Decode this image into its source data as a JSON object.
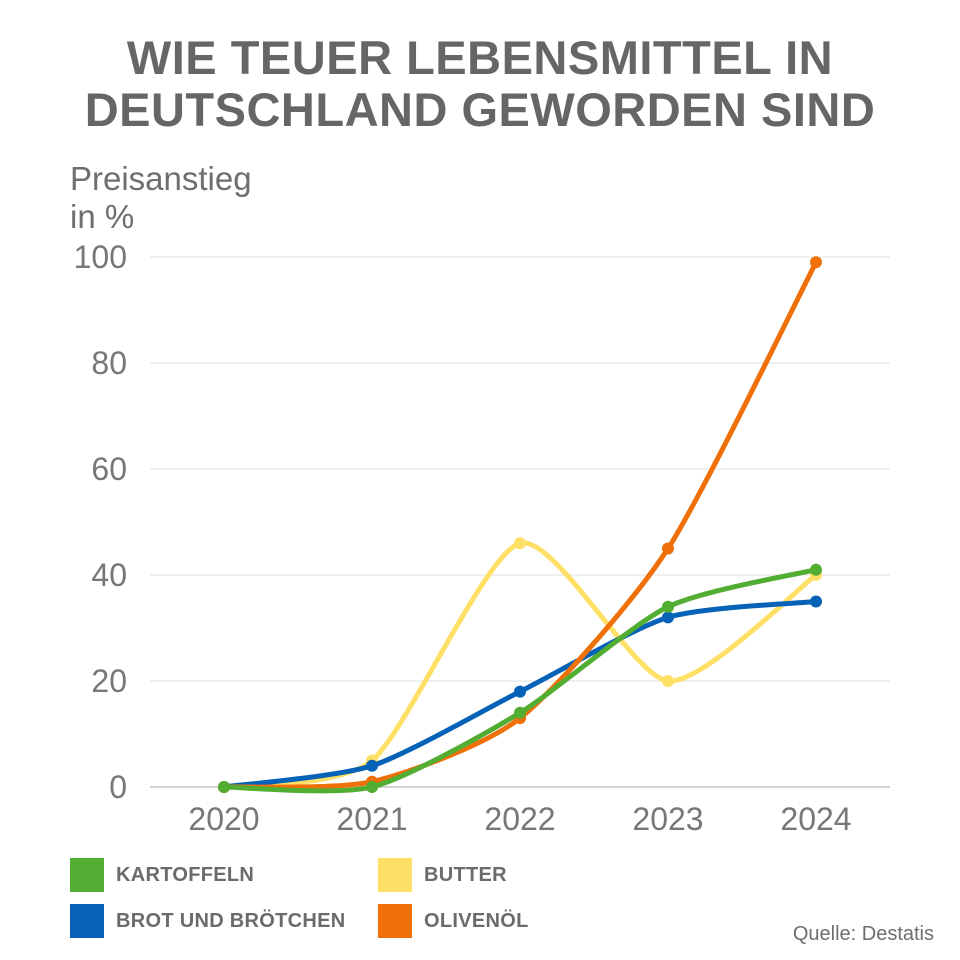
{
  "title": {
    "line1": "WIE TEUER LEBENSMITTEL IN",
    "line2": "DEUTSCHLAND GEWORDEN SIND"
  },
  "source": "Quelle: Destatis",
  "chart_data": {
    "type": "line",
    "title": "WIE TEUER LEBENSMITTEL IN DEUTSCHLAND GEWORDEN SIND",
    "ylabel": [
      "Preisanstieg",
      "in %"
    ],
    "xlabel": "",
    "categories": [
      "2020",
      "2021",
      "2022",
      "2023",
      "2024"
    ],
    "ylim": [
      0,
      100
    ],
    "yticks": [
      "0",
      "20",
      "40",
      "60",
      "80",
      "100"
    ],
    "grid": true,
    "legend_position": "bottom",
    "series": [
      {
        "name": "KARTOFFELN",
        "color": "#52ad33",
        "values": [
          0,
          0,
          14,
          34,
          41
        ]
      },
      {
        "name": "BUTTER",
        "color": "#ffe066",
        "values": [
          0,
          5,
          46,
          20,
          40
        ]
      },
      {
        "name": "BROT UND BRÖTCHEN",
        "color": "#0562b7",
        "values": [
          0,
          4,
          18,
          32,
          35
        ]
      },
      {
        "name": "OLIVENÖL",
        "color": "#ef7008",
        "values": [
          0,
          1,
          13,
          45,
          99
        ]
      }
    ]
  }
}
